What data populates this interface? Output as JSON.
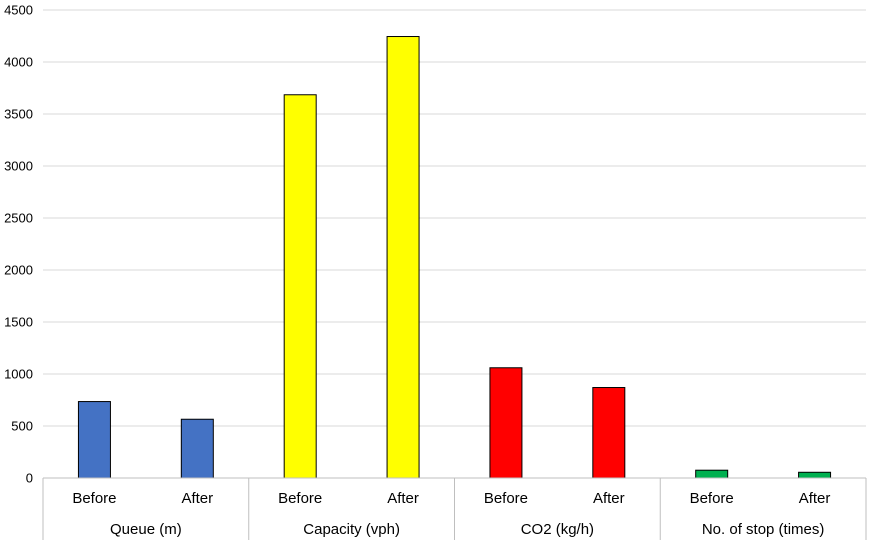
{
  "chart_data": {
    "type": "bar",
    "title": "",
    "xlabel": "",
    "ylabel": "",
    "ylim": [
      0,
      4500
    ],
    "ytick_step": 500,
    "yticks": [
      "0",
      "500",
      "1000",
      "1500",
      "2000",
      "2500",
      "3000",
      "3500",
      "4000",
      "4500"
    ],
    "grid": true,
    "legend": "none",
    "groups": [
      {
        "label": "Queue (m)",
        "color": "#4472C4",
        "bars": [
          {
            "label": "Before",
            "value": 735
          },
          {
            "label": "After",
            "value": 565
          }
        ]
      },
      {
        "label": "Capacity (vph)",
        "color": "#FFFF00",
        "bars": [
          {
            "label": "Before",
            "value": 3685
          },
          {
            "label": "After",
            "value": 4245
          }
        ]
      },
      {
        "label": "CO2 (kg/h)",
        "color": "#FF0000",
        "bars": [
          {
            "label": "Before",
            "value": 1060
          },
          {
            "label": "After",
            "value": 870
          }
        ]
      },
      {
        "label": "No. of stop (times)",
        "color": "#00B050",
        "bars": [
          {
            "label": "Before",
            "value": 75
          },
          {
            "label": "After",
            "value": 55
          }
        ]
      }
    ]
  }
}
